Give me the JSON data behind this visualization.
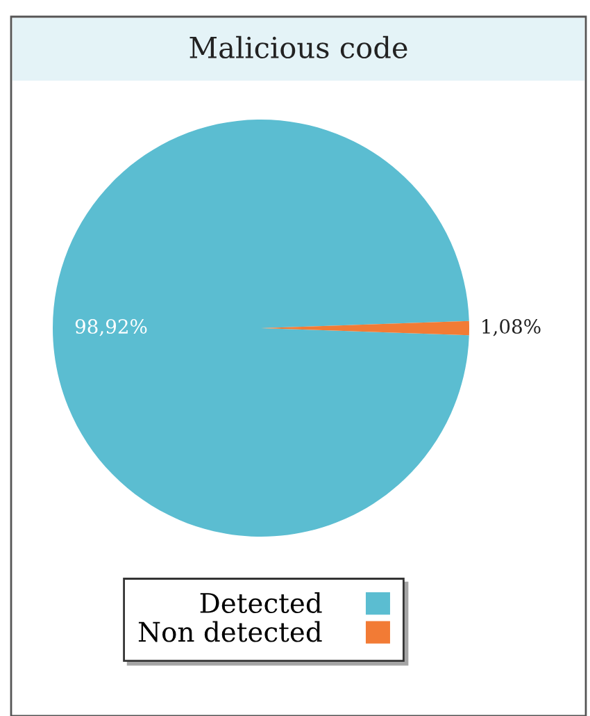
{
  "chart_data": {
    "type": "pie",
    "title": "Malicious code",
    "categories": [
      "Detected",
      "Non detected"
    ],
    "values": [
      98.92,
      1.08
    ],
    "colors": [
      "#5bbdd1",
      "#f27b35"
    ],
    "value_labels": [
      "98,92%",
      "1,08%"
    ],
    "legend": "bottom"
  }
}
